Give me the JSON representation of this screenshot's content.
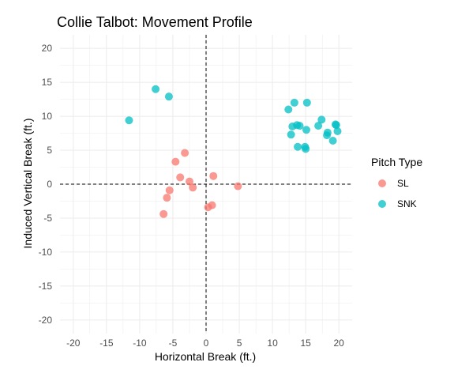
{
  "chart_data": {
    "type": "scatter",
    "title": "Collie Talbot: Movement Profile",
    "xlabel": "Horizontal Break (ft.)",
    "ylabel": "Induced Vertical Break (ft.)",
    "xlim": [
      -22,
      22
    ],
    "ylim": [
      -22,
      22
    ],
    "xticks": [
      "-20",
      "-15",
      "-10",
      "-5",
      "0",
      "5",
      "10",
      "15",
      "20"
    ],
    "yticks": [
      "20",
      "15",
      "10",
      "5",
      "0",
      "-5",
      "-10",
      "-15",
      "-20"
    ],
    "grid": true,
    "reference_lines": {
      "x": 0,
      "y": 0,
      "style": "dashed"
    },
    "legend": {
      "title": "Pitch Type",
      "position": "right"
    },
    "series": [
      {
        "name": "SL",
        "color": "#F8766D",
        "points": [
          [
            -3.2,
            4.6
          ],
          [
            -4.6,
            3.3
          ],
          [
            -3.9,
            1.0
          ],
          [
            -2.5,
            0.4
          ],
          [
            1.1,
            1.2
          ],
          [
            -2.0,
            -0.5
          ],
          [
            4.8,
            -0.3
          ],
          [
            -5.5,
            -0.9
          ],
          [
            -5.9,
            -2.0
          ],
          [
            -6.4,
            -4.4
          ],
          [
            0.9,
            -3.1
          ],
          [
            0.3,
            -3.4
          ]
        ]
      },
      {
        "name": "SNK",
        "color": "#00BFC4",
        "points": [
          [
            -7.6,
            14.0
          ],
          [
            -5.6,
            12.9
          ],
          [
            -11.6,
            9.4
          ],
          [
            12.4,
            11.0
          ],
          [
            13.3,
            12.0
          ],
          [
            15.2,
            12.0
          ],
          [
            13.0,
            8.5
          ],
          [
            13.7,
            8.7
          ],
          [
            14.1,
            8.6
          ],
          [
            12.8,
            7.3
          ],
          [
            15.1,
            8.0
          ],
          [
            16.9,
            8.6
          ],
          [
            17.4,
            9.5
          ],
          [
            18.3,
            7.6
          ],
          [
            18.2,
            7.2
          ],
          [
            19.5,
            8.8
          ],
          [
            19.6,
            8.7
          ],
          [
            19.8,
            7.8
          ],
          [
            19.1,
            6.4
          ],
          [
            13.8,
            5.5
          ],
          [
            14.9,
            5.5
          ],
          [
            15.0,
            5.2
          ]
        ]
      }
    ]
  }
}
